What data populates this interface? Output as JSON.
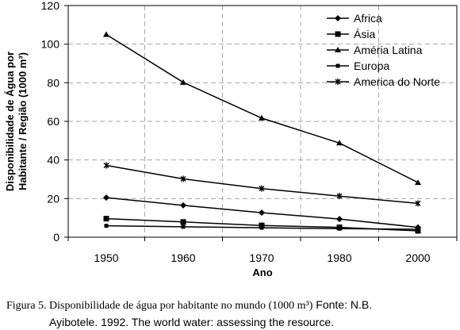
{
  "chart_data": {
    "type": "line",
    "title": "",
    "xlabel": "Ano",
    "ylabel_lines": [
      "Disponibilidade de Água por",
      "Habitante / Região (1000 m³)"
    ],
    "x": [
      1950,
      1960,
      1970,
      1980,
      2000
    ],
    "x_tick_labels": [
      "1950",
      "1960",
      "1970",
      "1980",
      "2000"
    ],
    "y_ticks": [
      0,
      20,
      40,
      60,
      80,
      100,
      120
    ],
    "y_tick_labels": [
      "0",
      "20",
      "40",
      "60",
      "80",
      "100",
      "120"
    ],
    "ylim": [
      0,
      120
    ],
    "grid": true,
    "legend_position": "top-right",
    "series": [
      {
        "name": "Africa",
        "marker": "diamond",
        "values": [
          20.5,
          16.5,
          12.7,
          9.4,
          5.1
        ]
      },
      {
        "name": "Ásia",
        "marker": "square",
        "values": [
          9.6,
          7.9,
          6.1,
          5.1,
          3.3
        ]
      },
      {
        "name": "Améria Latina",
        "marker": "triangle",
        "values": [
          105,
          80.2,
          61.7,
          48.8,
          28.3
        ]
      },
      {
        "name": "Europa",
        "marker": "small-square",
        "values": [
          5.9,
          5.4,
          4.9,
          4.4,
          4.1
        ]
      },
      {
        "name": "America do Norte",
        "marker": "star",
        "values": [
          37.2,
          30.2,
          25.2,
          21.3,
          17.5
        ]
      }
    ]
  },
  "caption": {
    "prefix": "Figura 5. Disponibilidade de água por habitante no mundo (1000 m³)",
    "source_part1": " Fonte: N.B.",
    "source_part2": "Ayibotele. 1992. The world water: assessing the resource."
  }
}
